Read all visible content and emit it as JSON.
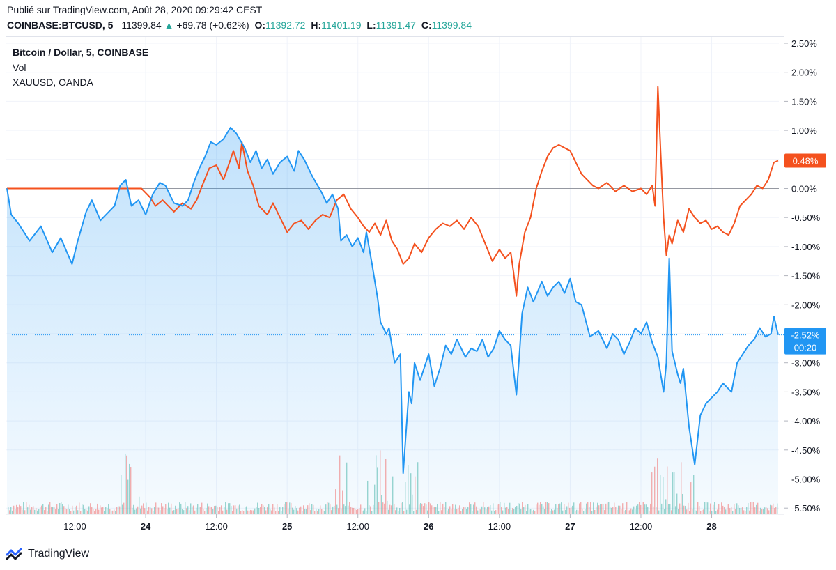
{
  "header": {
    "published": "Publié sur TradingView.com, Août 28, 2020 09:29:42 CEST",
    "symbol": "COINBASE:BTCUSD, 5",
    "price": "11399.84",
    "change": "+69.78 (+0.62%)",
    "o_label": "O:",
    "o_value": "11392.72",
    "h_label": "H:",
    "h_value": "11401.19",
    "l_label": "L:",
    "l_value": "11391.47",
    "c_label": "C:",
    "c_value": "11399.84"
  },
  "legend": {
    "main": "Bitcoin / Dollar, 5, COINBASE",
    "vol": "Vol",
    "compare": "XAUUSD, OANDA"
  },
  "colors": {
    "btc": "#2196f3",
    "xau": "#f4511e",
    "up": "#26a69a",
    "grid": "#f0f3fa"
  },
  "badges": {
    "xau": "0.48%",
    "btc": "-2.52%",
    "countdown": "00:20"
  },
  "footer": {
    "brand": "TradingView"
  },
  "chart_data": {
    "type": "line",
    "y_unit": "%",
    "ylim": [
      -5.5,
      2.5
    ],
    "y_ticks": [
      "2.50%",
      "2.00%",
      "1.50%",
      "1.00%",
      "0.50%",
      "0.00%",
      "-0.50%",
      "-1.00%",
      "-1.50%",
      "-2.00%",
      "-2.50%",
      "-3.00%",
      "-3.50%",
      "-4.00%",
      "-4.50%",
      "-5.00%",
      "-5.50%"
    ],
    "x_ticks": [
      "12:00",
      "24",
      "12:00",
      "25",
      "12:00",
      "26",
      "12:00",
      "27",
      "12:00",
      "28"
    ],
    "x_tick_pos": [
      1.5,
      2,
      2.5,
      3,
      3.5,
      4,
      4.5,
      5,
      5.5,
      6
    ],
    "xlim": [
      1.02,
      6.47
    ],
    "grid": true,
    "series": [
      {
        "name": "Bitcoin / Dollar, 5, COINBASE",
        "x": [
          1.02,
          1.05,
          1.1,
          1.18,
          1.26,
          1.34,
          1.4,
          1.48,
          1.52,
          1.58,
          1.62,
          1.68,
          1.74,
          1.78,
          1.82,
          1.86,
          1.9,
          1.95,
          2.0,
          2.05,
          2.1,
          2.14,
          2.2,
          2.26,
          2.3,
          2.34,
          2.38,
          2.42,
          2.46,
          2.5,
          2.55,
          2.6,
          2.64,
          2.7,
          2.74,
          2.78,
          2.82,
          2.86,
          2.9,
          2.95,
          3.0,
          3.05,
          3.08,
          3.12,
          3.18,
          3.24,
          3.28,
          3.32,
          3.36,
          3.38,
          3.42,
          3.46,
          3.5,
          3.54,
          3.56,
          3.6,
          3.64,
          3.66,
          3.7,
          3.72,
          3.76,
          3.8,
          3.82,
          3.86,
          3.88,
          3.9,
          3.94,
          4.0,
          4.04,
          4.08,
          4.12,
          4.16,
          4.2,
          4.26,
          4.3,
          4.34,
          4.38,
          4.42,
          4.46,
          4.5,
          4.54,
          4.58,
          4.62,
          4.64,
          4.66,
          4.7,
          4.74,
          4.8,
          4.84,
          4.88,
          4.92,
          4.96,
          5.0,
          5.04,
          5.08,
          5.14,
          5.2,
          5.26,
          5.3,
          5.34,
          5.38,
          5.42,
          5.46,
          5.5,
          5.54,
          5.58,
          5.62,
          5.66,
          5.68,
          5.7,
          5.72,
          5.76,
          5.78,
          5.8,
          5.84,
          5.88,
          5.92,
          5.96,
          6.0,
          6.04,
          6.08,
          6.14,
          6.18,
          6.22,
          6.26,
          6.3,
          6.34,
          6.38,
          6.42,
          6.44,
          6.47
        ],
        "values": [
          0.0,
          -0.45,
          -0.6,
          -0.9,
          -0.65,
          -1.1,
          -0.85,
          -1.3,
          -0.9,
          -0.4,
          -0.2,
          -0.55,
          -0.4,
          -0.3,
          0.05,
          0.15,
          -0.3,
          -0.2,
          -0.45,
          -0.1,
          0.1,
          0.05,
          -0.25,
          -0.3,
          -0.2,
          0.1,
          0.35,
          0.55,
          0.8,
          0.75,
          0.85,
          1.05,
          0.95,
          0.7,
          0.45,
          0.65,
          0.35,
          0.5,
          0.25,
          0.45,
          0.55,
          0.3,
          0.65,
          0.5,
          0.2,
          -0.05,
          -0.25,
          -0.1,
          -0.35,
          -0.9,
          -0.8,
          -1.0,
          -0.85,
          -1.1,
          -0.75,
          -1.3,
          -1.9,
          -2.3,
          -2.5,
          -2.4,
          -3.0,
          -2.85,
          -4.9,
          -3.5,
          -3.7,
          -3.0,
          -3.3,
          -2.85,
          -3.4,
          -3.1,
          -2.7,
          -2.85,
          -2.6,
          -2.9,
          -2.75,
          -2.8,
          -2.6,
          -2.9,
          -2.75,
          -2.45,
          -2.6,
          -2.7,
          -3.55,
          -2.9,
          -2.15,
          -1.7,
          -1.95,
          -1.6,
          -1.85,
          -1.7,
          -1.6,
          -1.8,
          -1.55,
          -1.95,
          -2.0,
          -2.55,
          -2.45,
          -2.75,
          -2.5,
          -2.6,
          -2.85,
          -2.65,
          -2.4,
          -2.5,
          -2.3,
          -2.65,
          -2.9,
          -3.5,
          -3.0,
          -1.2,
          -2.8,
          -3.2,
          -3.35,
          -3.1,
          -4.1,
          -4.75,
          -3.9,
          -3.7,
          -3.6,
          -3.5,
          -3.35,
          -3.5,
          -3.0,
          -2.85,
          -2.7,
          -2.6,
          -2.4,
          -2.55,
          -2.5,
          -2.2,
          -2.52
        ]
      },
      {
        "name": "XAUUSD, OANDA",
        "x": [
          1.02,
          1.3,
          1.6,
          1.9,
          1.97,
          2.03,
          2.07,
          2.12,
          2.2,
          2.26,
          2.32,
          2.36,
          2.4,
          2.45,
          2.5,
          2.55,
          2.6,
          2.62,
          2.66,
          2.68,
          2.72,
          2.76,
          2.8,
          2.86,
          2.9,
          2.95,
          3.0,
          3.05,
          3.1,
          3.15,
          3.2,
          3.25,
          3.3,
          3.35,
          3.4,
          3.45,
          3.5,
          3.54,
          3.58,
          3.62,
          3.66,
          3.7,
          3.74,
          3.78,
          3.82,
          3.86,
          3.9,
          3.95,
          4.0,
          4.05,
          4.1,
          4.15,
          4.2,
          4.25,
          4.3,
          4.35,
          4.4,
          4.45,
          4.5,
          4.54,
          4.58,
          4.6,
          4.62,
          4.64,
          4.68,
          4.72,
          4.76,
          4.8,
          4.84,
          4.88,
          4.92,
          4.96,
          5.0,
          5.04,
          5.08,
          5.12,
          5.16,
          5.2,
          5.26,
          5.32,
          5.38,
          5.44,
          5.5,
          5.54,
          5.58,
          5.6,
          5.62,
          5.64,
          5.66,
          5.68,
          5.7,
          5.72,
          5.76,
          5.8,
          5.84,
          5.88,
          5.92,
          5.96,
          6.0,
          6.04,
          6.08,
          6.12,
          6.16,
          6.2,
          6.24,
          6.28,
          6.32,
          6.36,
          6.4,
          6.44,
          6.47
        ],
        "values": [
          0.0,
          0.0,
          0.0,
          0.0,
          0.0,
          -0.15,
          -0.3,
          -0.2,
          -0.4,
          -0.25,
          -0.35,
          -0.2,
          0.05,
          0.35,
          0.4,
          0.15,
          0.5,
          0.65,
          0.35,
          0.8,
          0.3,
          0.05,
          -0.3,
          -0.45,
          -0.25,
          -0.5,
          -0.75,
          -0.6,
          -0.55,
          -0.7,
          -0.55,
          -0.45,
          -0.5,
          -0.2,
          -0.1,
          -0.35,
          -0.5,
          -0.65,
          -0.75,
          -0.6,
          -0.8,
          -0.55,
          -0.9,
          -1.05,
          -1.3,
          -1.2,
          -0.95,
          -1.1,
          -0.85,
          -0.7,
          -0.6,
          -0.65,
          -0.55,
          -0.7,
          -0.5,
          -0.65,
          -0.95,
          -1.25,
          -1.05,
          -1.2,
          -1.1,
          -1.45,
          -1.85,
          -1.3,
          -0.75,
          -0.5,
          0.0,
          0.3,
          0.55,
          0.7,
          0.75,
          0.7,
          0.65,
          0.45,
          0.25,
          0.15,
          0.05,
          0.0,
          0.1,
          -0.05,
          0.05,
          -0.05,
          0.0,
          -0.1,
          0.05,
          -0.3,
          1.75,
          0.6,
          -0.5,
          -1.15,
          -0.8,
          -0.95,
          -0.55,
          -0.75,
          -0.35,
          -0.5,
          -0.6,
          -0.55,
          -0.7,
          -0.65,
          -0.75,
          -0.8,
          -0.6,
          -0.3,
          -0.2,
          -0.1,
          0.05,
          0.0,
          0.15,
          0.45,
          0.48
        ]
      }
    ]
  }
}
